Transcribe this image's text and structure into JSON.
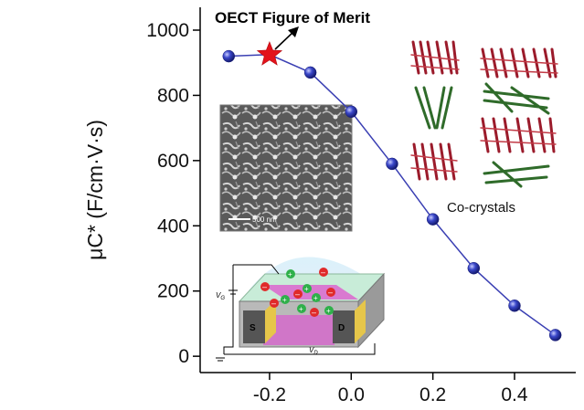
{
  "chart_data": {
    "type": "line",
    "x": [
      -0.3,
      -0.2,
      -0.1,
      0.0,
      0.1,
      0.2,
      0.3,
      0.4,
      0.5
    ],
    "series": [
      {
        "values": [
          920,
          925,
          870,
          750,
          590,
          420,
          270,
          155,
          65
        ]
      }
    ],
    "highlight": {
      "x": -0.2,
      "y": 925,
      "marker": "star"
    },
    "xlim": [
      -0.37,
      0.55
    ],
    "ylim": [
      -50,
      1070
    ],
    "xticks": [
      -0.2,
      0.0,
      0.2,
      0.4
    ],
    "xtick_labels": [
      "-0.2",
      "0.0",
      "0.2",
      "0.4"
    ],
    "yticks": [
      0,
      200,
      400,
      600,
      800,
      1000
    ],
    "ytick_labels": [
      "0",
      "200",
      "400",
      "600",
      "800",
      "1000"
    ],
    "ylabel": "μC* (F/cm·V·s)",
    "xlabel": "",
    "annotations": [
      "OECT Figure of Merit",
      "Co-crystals"
    ],
    "grid": false,
    "colors": {
      "line": "#3a3fb3",
      "marker": "#3a47c9",
      "star": "#e3121b"
    }
  },
  "insets": {
    "sem_scale_label": "500 nm",
    "device_labels": {
      "vg": "V",
      "vg_sub": "G",
      "vd": "V",
      "vd_sub": "D",
      "source": "S",
      "drain": "D"
    }
  }
}
